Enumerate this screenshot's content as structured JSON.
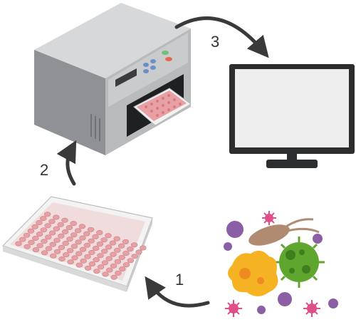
{
  "steps": [
    {
      "number": "1",
      "from": "microbes",
      "to": "microplate"
    },
    {
      "number": "2",
      "from": "microplate",
      "to": "plate-reader"
    },
    {
      "number": "3",
      "from": "plate-reader",
      "to": "monitor"
    }
  ],
  "colors": {
    "arrow": "#3a3a3a",
    "device_body": "#a9abae",
    "device_front": "#c9cbcd",
    "plate_well": "#e7a0a3",
    "monitor_frame": "#2b2d2f",
    "monitor_screen": "#eeeeee",
    "microbe_green": "#5fa62f",
    "microbe_yellow": "#f5b324",
    "microbe_purple": "#8a5fa6",
    "microbe_pink": "#e04f8a",
    "microbe_brown": "#b08b72"
  },
  "icons": [
    "plate-reader-icon",
    "microplate-icon",
    "monitor-icon",
    "microbes-icon"
  ]
}
